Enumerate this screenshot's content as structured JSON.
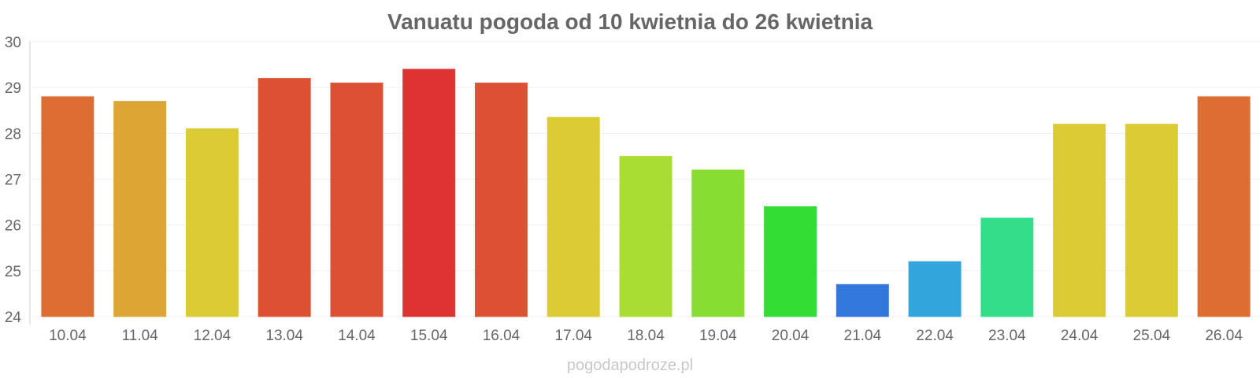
{
  "chart_data": {
    "type": "bar",
    "title": "Vanuatu pogoda od 10 kwietnia do 26 kwietnia",
    "xlabel": "",
    "ylabel": "",
    "categories": [
      "10.04",
      "11.04",
      "12.04",
      "13.04",
      "14.04",
      "15.04",
      "16.04",
      "17.04",
      "18.04",
      "19.04",
      "20.04",
      "21.04",
      "22.04",
      "23.04",
      "24.04",
      "25.04",
      "26.04"
    ],
    "values": [
      28.8,
      28.7,
      28.1,
      29.2,
      29.1,
      29.4,
      29.1,
      28.35,
      27.5,
      27.2,
      26.4,
      24.7,
      25.2,
      26.15,
      28.2,
      28.2,
      28.8
    ],
    "colors": [
      "#dd6e33",
      "#dda533",
      "#dacb33",
      "#dd5033",
      "#dd5033",
      "#dd3333",
      "#dd5033",
      "#dacb33",
      "#aadd33",
      "#88dd33",
      "#33dd33",
      "#3377dd",
      "#33a5dd",
      "#33dd88",
      "#dacb33",
      "#dacb33",
      "#dd6e33"
    ],
    "ylim": [
      24,
      30
    ],
    "yticks": [
      "24",
      "25",
      "26",
      "27",
      "28",
      "29",
      "30"
    ],
    "grid": true,
    "legend": "none"
  },
  "watermark": "pogodapodroze.pl"
}
